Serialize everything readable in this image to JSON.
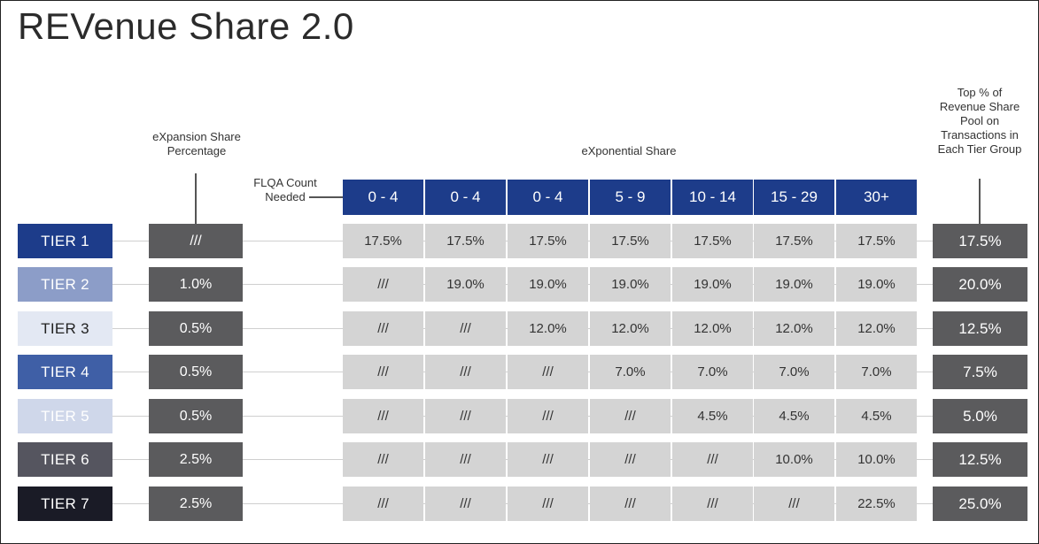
{
  "title": "REVenue Share 2.0",
  "notes": {
    "expansion": "eXpansion Share Percentage",
    "flqa": "FLQA Count Needed",
    "exponential": "eXponential Share",
    "top_pct": "Top % of Revenue Share Pool on Transactions in Each Tier Group"
  },
  "headers": [
    "0 - 4",
    "0 - 4",
    "0 - 4",
    "5 - 9",
    "10 - 14",
    "15 - 29",
    "30+"
  ],
  "colors": {
    "header_bg": "#1d3c8a",
    "dark_cell": "#5b5b5d",
    "light_cell": "#d4d4d4"
  },
  "tiers": [
    {
      "label": "TIER 1",
      "bg": "#1d3c8a",
      "fg": "#ffffff",
      "expansion": "///",
      "values": [
        "17.5%",
        "17.5%",
        "17.5%",
        "17.5%",
        "17.5%",
        "17.5%",
        "17.5%"
      ],
      "top": "17.5%"
    },
    {
      "label": "TIER 2",
      "bg": "#8c9dc8",
      "fg": "#ffffff",
      "expansion": "1.0%",
      "values": [
        "///",
        "19.0%",
        "19.0%",
        "19.0%",
        "19.0%",
        "19.0%",
        "19.0%"
      ],
      "top": "20.0%"
    },
    {
      "label": "TIER 3",
      "bg": "#e3e8f3",
      "fg": "#222222",
      "expansion": "0.5%",
      "values": [
        "///",
        "///",
        "12.0%",
        "12.0%",
        "12.0%",
        "12.0%",
        "12.0%"
      ],
      "top": "12.5%"
    },
    {
      "label": "TIER 4",
      "bg": "#3f5fa6",
      "fg": "#ffffff",
      "expansion": "0.5%",
      "values": [
        "///",
        "///",
        "///",
        "7.0%",
        "7.0%",
        "7.0%",
        "7.0%"
      ],
      "top": "7.5%"
    },
    {
      "label": "TIER 5",
      "bg": "#cfd7ea",
      "fg": "#ffffff",
      "expansion": "0.5%",
      "values": [
        "///",
        "///",
        "///",
        "///",
        "4.5%",
        "4.5%",
        "4.5%"
      ],
      "top": "5.0%"
    },
    {
      "label": "TIER 6",
      "bg": "#55555f",
      "fg": "#ffffff",
      "expansion": "2.5%",
      "values": [
        "///",
        "///",
        "///",
        "///",
        "///",
        "10.0%",
        "10.0%"
      ],
      "top": "12.5%"
    },
    {
      "label": "TIER 7",
      "bg": "#1a1b26",
      "fg": "#ffffff",
      "expansion": "2.5%",
      "values": [
        "///",
        "///",
        "///",
        "///",
        "///",
        "///",
        "22.5%"
      ],
      "top": "25.0%"
    }
  ]
}
